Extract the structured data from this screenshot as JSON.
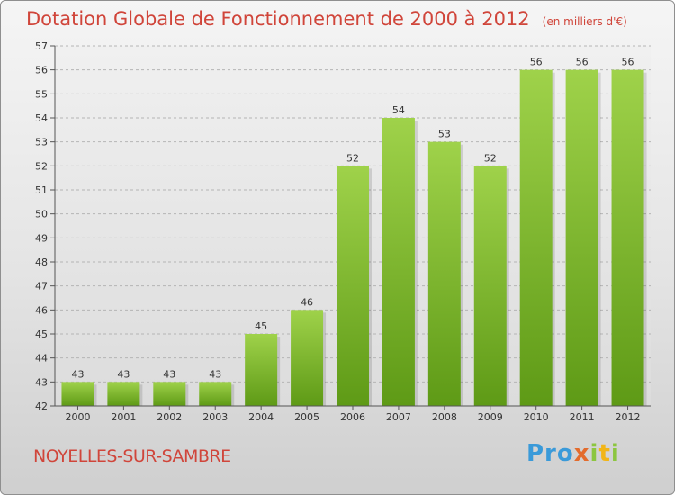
{
  "header": {
    "title": "Dotation Globale de Fonctionnement de 2000 à 2012",
    "units": "(en milliers d'€)"
  },
  "footer": {
    "commune": "NOYELLES-SUR-SAMBRE"
  },
  "logo": {
    "p1": "Pro",
    "p2": "x",
    "p3": "i",
    "p4": "t",
    "p5": "i"
  },
  "colors": {
    "bar_top": "#9fd24a",
    "bar_bottom": "#5e9a16",
    "title": "#d0453a"
  },
  "chart_data": {
    "type": "bar",
    "categories": [
      "2000",
      "2001",
      "2002",
      "2003",
      "2004",
      "2005",
      "2006",
      "2007",
      "2008",
      "2009",
      "2010",
      "2011",
      "2012"
    ],
    "values": [
      43,
      43,
      43,
      43,
      45,
      46,
      52,
      54,
      53,
      52,
      56,
      56,
      56
    ],
    "ylim": [
      42,
      57
    ],
    "yticks": [
      42,
      43,
      44,
      45,
      46,
      47,
      48,
      49,
      50,
      51,
      52,
      53,
      54,
      55,
      56,
      57
    ],
    "grid": true
  }
}
